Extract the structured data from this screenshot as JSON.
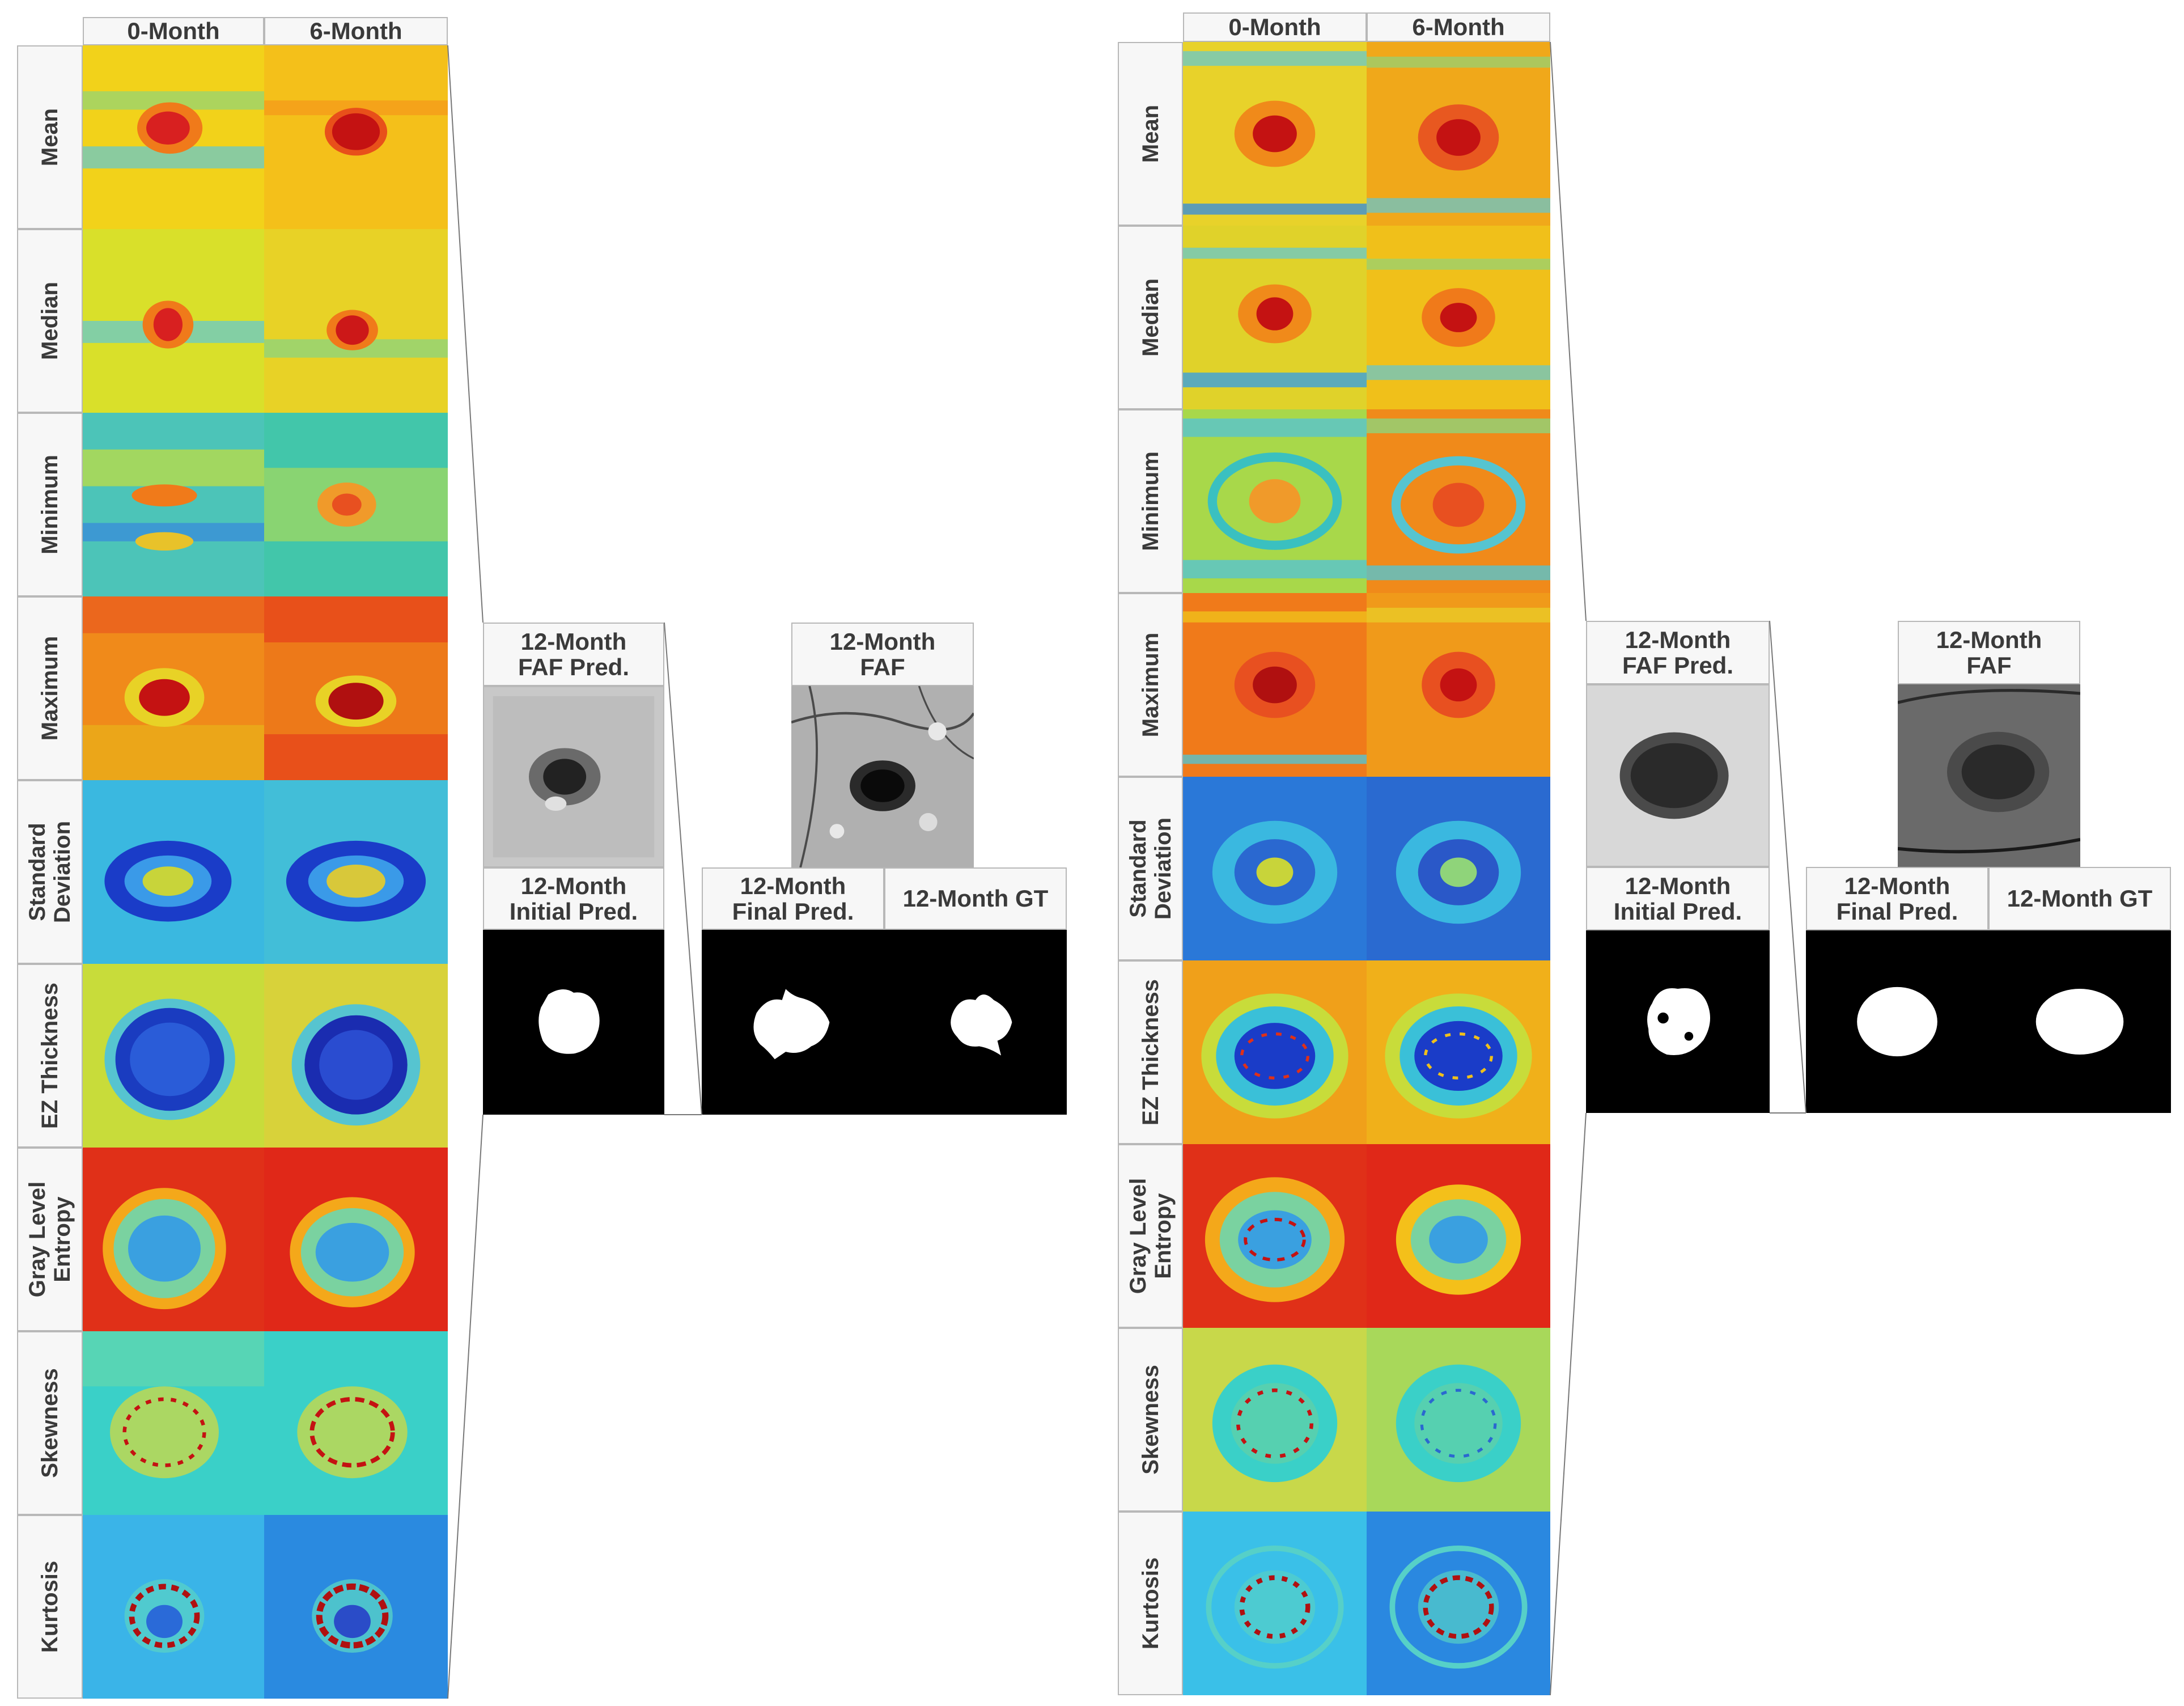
{
  "columns": [
    "0-Month",
    "6-Month"
  ],
  "rows": [
    "Mean",
    "Median",
    "Minimum",
    "Maximum",
    "Standard\nDeviation",
    "EZ Thickness",
    "Gray Level\nEntropy",
    "Skewness",
    "Kurtosis"
  ],
  "outputs": {
    "faf_pred": "12-Month\nFAF Pred.",
    "faf": "12-Month\nFAF",
    "initial_pred": "12-Month\nInitial Pred.",
    "final_pred": "12-Month\nFinal Pred.",
    "gt": "12-Month GT"
  }
}
